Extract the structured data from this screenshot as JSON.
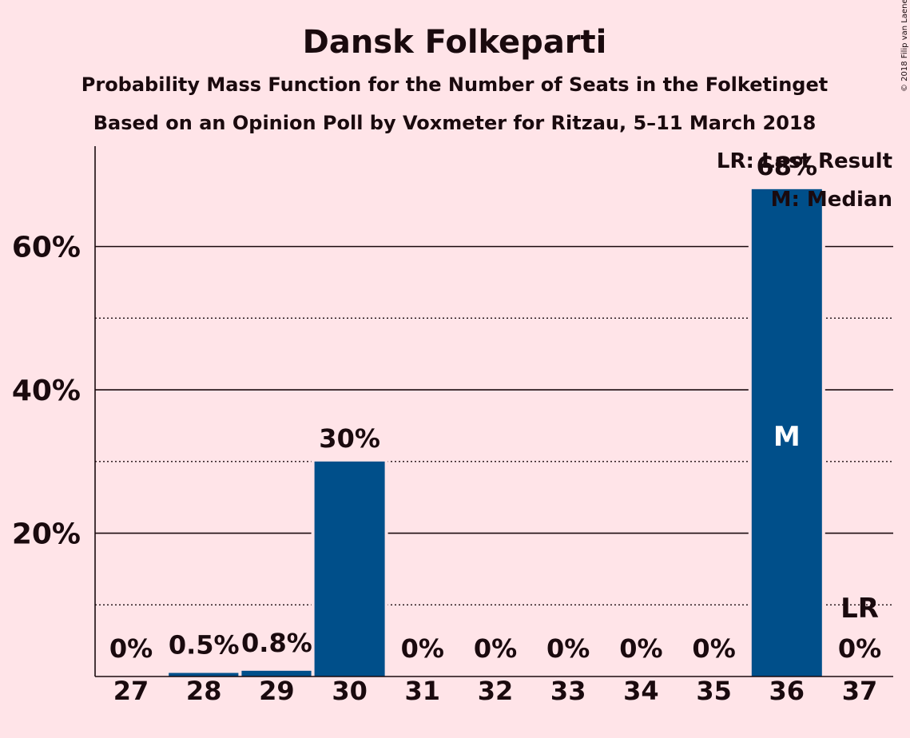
{
  "chart_data": {
    "type": "bar",
    "title": "Dansk Folkeparti",
    "subtitle": "Probability Mass Function for the Number of Seats in the Folketinget",
    "subtitle2": "Based on an Opinion Poll by Voxmeter for Ritzau, 5–11 March 2018",
    "credit": "© 2018 Filip van Laenen",
    "categories": [
      "27",
      "28",
      "29",
      "30",
      "31",
      "32",
      "33",
      "34",
      "35",
      "36",
      "37"
    ],
    "values": [
      0,
      0.5,
      0.8,
      30,
      0,
      0,
      0,
      0,
      0,
      68,
      0
    ],
    "data_labels": [
      "0%",
      "0.5%",
      "0.8%",
      "30%",
      "0%",
      "0%",
      "0%",
      "0%",
      "0%",
      "68%",
      "0%"
    ],
    "ylim": [
      0,
      74
    ],
    "yticks": [
      {
        "value": 20,
        "label": "20%"
      },
      {
        "value": 40,
        "label": "40%"
      },
      {
        "value": 60,
        "label": "60%"
      }
    ],
    "minor_gridlines": [
      10,
      30,
      50
    ],
    "median_category": "36",
    "median_marker": "M",
    "last_result_category": "37",
    "last_result_marker": "LR",
    "legend": [
      "LR: Last Result",
      "M: Median"
    ],
    "legend_position": "top-right",
    "bar_color": "#004f8a",
    "background_color": "#ffe4e8"
  }
}
